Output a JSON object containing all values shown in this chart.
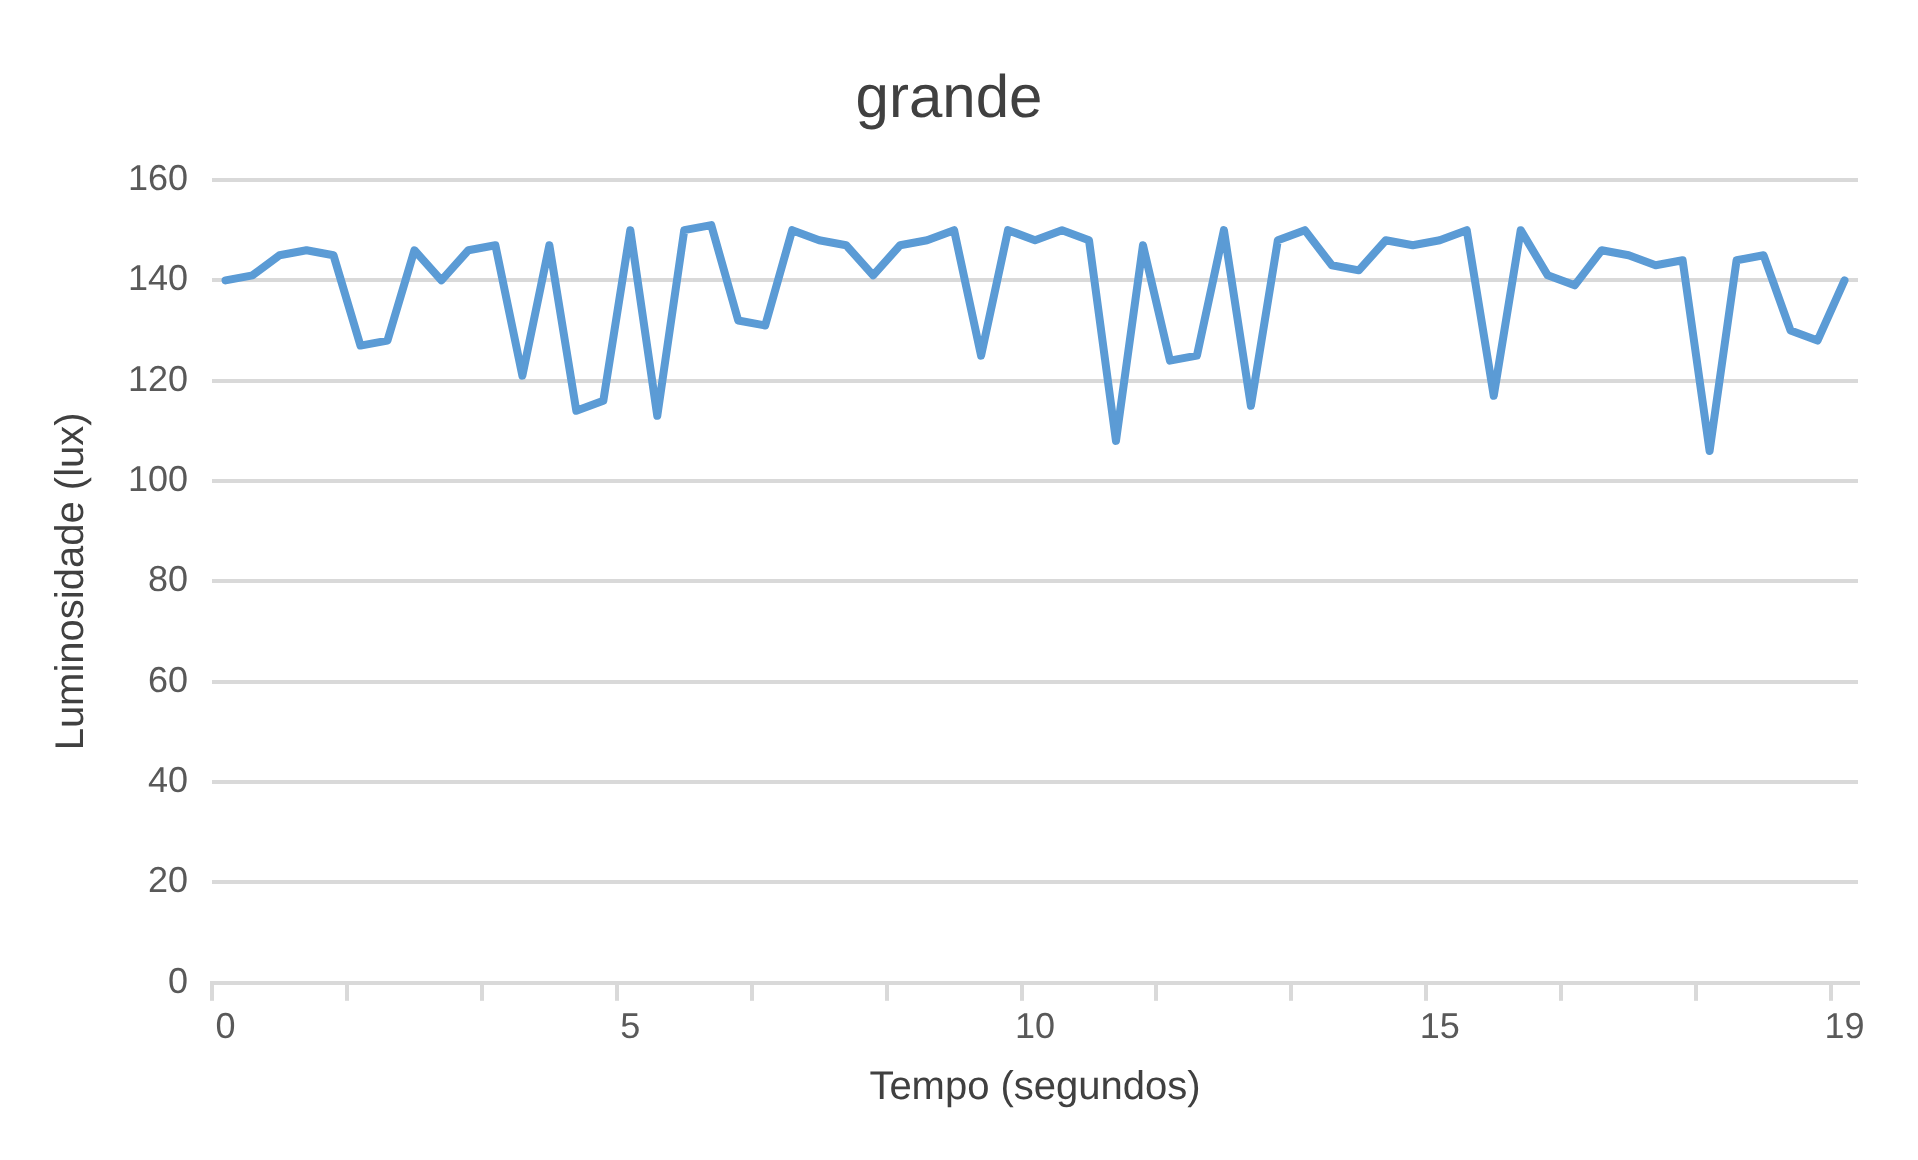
{
  "chart_data": {
    "type": "line",
    "title": "grande",
    "xlabel": "Tempo (segundos)",
    "ylabel": "Luminosidade (lux)",
    "categories": [
      "0",
      null,
      null,
      null,
      null,
      null,
      null,
      null,
      null,
      null,
      null,
      null,
      null,
      null,
      null,
      "5",
      null,
      null,
      null,
      null,
      null,
      null,
      null,
      null,
      null,
      null,
      null,
      null,
      null,
      null,
      "10",
      null,
      null,
      null,
      null,
      null,
      null,
      null,
      null,
      null,
      null,
      null,
      null,
      null,
      null,
      "15",
      null,
      null,
      null,
      null,
      null,
      null,
      null,
      null,
      null,
      null,
      null,
      null,
      null,
      null,
      "19"
    ],
    "series": [
      {
        "color": "#5b9bd5",
        "values": [
          140,
          141,
          145,
          146,
          145,
          127,
          128,
          146,
          140,
          146,
          147,
          121,
          147,
          114,
          116,
          150,
          113,
          150,
          151,
          132,
          131,
          150,
          148,
          147,
          141,
          147,
          148,
          150,
          125,
          150,
          148,
          150,
          148,
          108,
          147,
          124,
          125,
          150,
          115,
          148,
          150,
          143,
          142,
          148,
          147,
          148,
          150,
          117,
          150,
          141,
          139,
          146,
          145,
          143,
          144,
          106,
          144,
          145,
          130,
          128,
          140
        ]
      }
    ],
    "ylim": [
      0,
      160
    ],
    "yticks": [
      0,
      20,
      40,
      60,
      80,
      100,
      120,
      140,
      160
    ],
    "grid": "y",
    "legend": false,
    "marker": "none",
    "line_style": "solid"
  }
}
